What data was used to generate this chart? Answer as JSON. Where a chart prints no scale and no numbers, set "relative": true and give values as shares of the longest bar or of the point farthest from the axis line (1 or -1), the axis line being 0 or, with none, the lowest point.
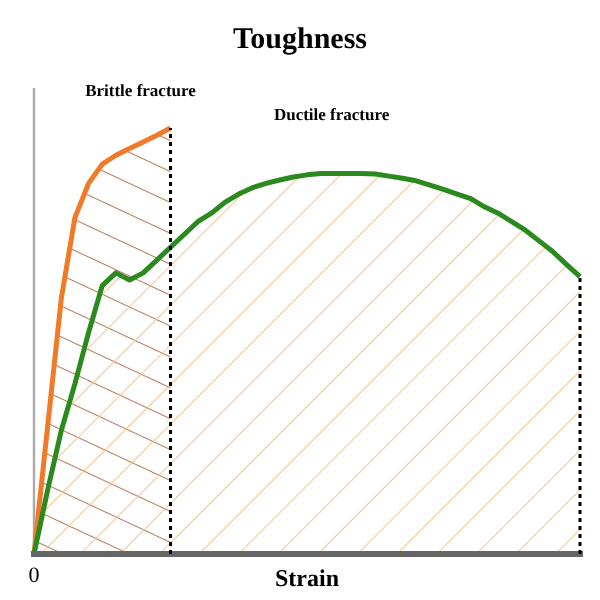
{
  "chart_data": {
    "type": "area",
    "title": "Toughness",
    "xlabel": "Strain",
    "relative": true,
    "grid": false,
    "categories": [
      null,
      null,
      null,
      null,
      null,
      null,
      null,
      null,
      null,
      null,
      null,
      null,
      null,
      null,
      null,
      null,
      null,
      null,
      null,
      null,
      null,
      null,
      null,
      null,
      null,
      null,
      null,
      null,
      null,
      null,
      null,
      null,
      null,
      null,
      null,
      null,
      null,
      null,
      null,
      null,
      null
    ],
    "series": [
      {
        "color": "#f07a28",
        "values": [
          0,
          0.3,
          0.6,
          0.79,
          0.87,
          0.915,
          0.936,
          0.952,
          0.967,
          0.983,
          1.0,
          null,
          null,
          null,
          null,
          null,
          null,
          null,
          null,
          null,
          null,
          null,
          null,
          null,
          null,
          null,
          null,
          null,
          null,
          null,
          null,
          null,
          null,
          null,
          null,
          null,
          null,
          null,
          null,
          null,
          null
        ]
      },
      {
        "color": "#2a8a1e",
        "values": [
          0,
          0.15,
          0.29,
          0.4,
          0.52,
          0.63,
          0.66,
          0.643,
          0.66,
          0.69,
          0.72,
          0.75,
          0.78,
          0.8,
          0.826,
          0.845,
          0.86,
          0.87,
          0.878,
          0.885,
          0.89,
          0.893,
          0.893,
          0.893,
          0.893,
          0.892,
          0.887,
          0.882,
          0.876,
          0.866,
          0.856,
          0.845,
          0.834,
          0.815,
          0.8,
          0.78,
          0.76,
          0.735,
          0.71,
          0.68,
          0.651
        ]
      }
    ],
    "annotations": [
      "0",
      "Brittle fracture",
      "Ductile fracture"
    ]
  }
}
